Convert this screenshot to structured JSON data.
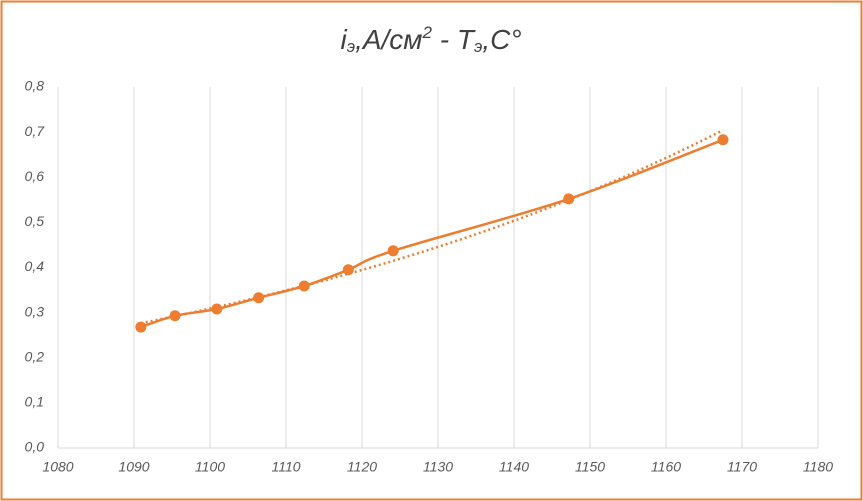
{
  "chart_data": {
    "type": "scatter",
    "title": [
      "i",
      "э",
      ",A/см",
      "2",
      " - T",
      "э",
      ",C°"
    ],
    "x": [
      1090.9,
      1095.4,
      1100.9,
      1106.4,
      1112.4,
      1118.2,
      1124.1,
      1147.2,
      1167.5
    ],
    "series": [
      {
        "color": "#ed7d31",
        "values": [
          0.268,
          0.293,
          0.308,
          0.333,
          0.359,
          0.395,
          0.437,
          0.552,
          0.683
        ]
      }
    ],
    "trendline": "exponential",
    "smooth": true,
    "border_color": "#ed7d31",
    "xlim": [
      1080,
      1180
    ],
    "xticks": [
      1080,
      1090,
      1100,
      1110,
      1120,
      1130,
      1140,
      1150,
      1160,
      1170,
      1180
    ],
    "ylim": [
      0,
      0.8
    ],
    "yticks": [
      {
        "value": 0,
        "label": "0,0"
      },
      {
        "value": 0.1,
        "label": "0,1"
      },
      {
        "value": 0.2,
        "label": "0,2"
      },
      {
        "value": 0.3,
        "label": "0,3"
      },
      {
        "value": 0.4,
        "label": "0,4"
      },
      {
        "value": 0.5,
        "label": "0,5"
      },
      {
        "value": 0.6,
        "label": "0,6"
      },
      {
        "value": 0.7,
        "label": "0,7"
      },
      {
        "value": 0.8,
        "label": "0,8"
      }
    ],
    "grid": "x"
  }
}
